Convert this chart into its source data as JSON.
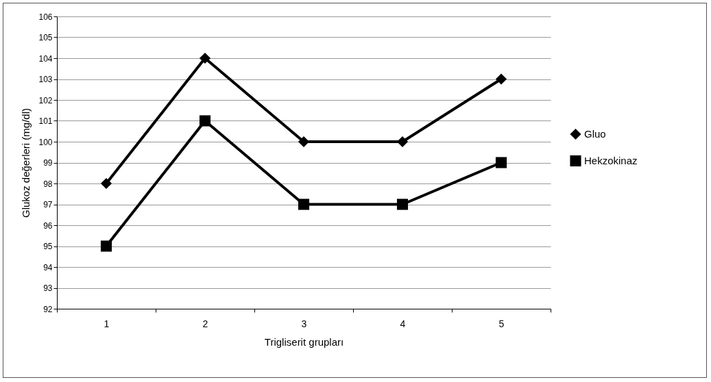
{
  "chart_data": {
    "type": "line",
    "xlabel": "Trigliserit grupları",
    "ylabel": "Glukoz değerleri (mg/dl)",
    "categories": [
      "1",
      "2",
      "3",
      "4",
      "5"
    ],
    "series": [
      {
        "name": "Gluo",
        "color": "#000000",
        "marker": "diamond",
        "values": [
          98,
          104,
          100,
          100,
          103
        ]
      },
      {
        "name": "Hekzokinaz",
        "color": "#000000",
        "marker": "square",
        "values": [
          95,
          101,
          97,
          97,
          99
        ]
      }
    ],
    "ylim": [
      92,
      106
    ],
    "yticks": [
      92,
      93,
      94,
      95,
      96,
      97,
      98,
      99,
      100,
      101,
      102,
      103,
      104,
      105,
      106
    ],
    "grid": "y",
    "legend": "right",
    "line_style": "solid"
  }
}
